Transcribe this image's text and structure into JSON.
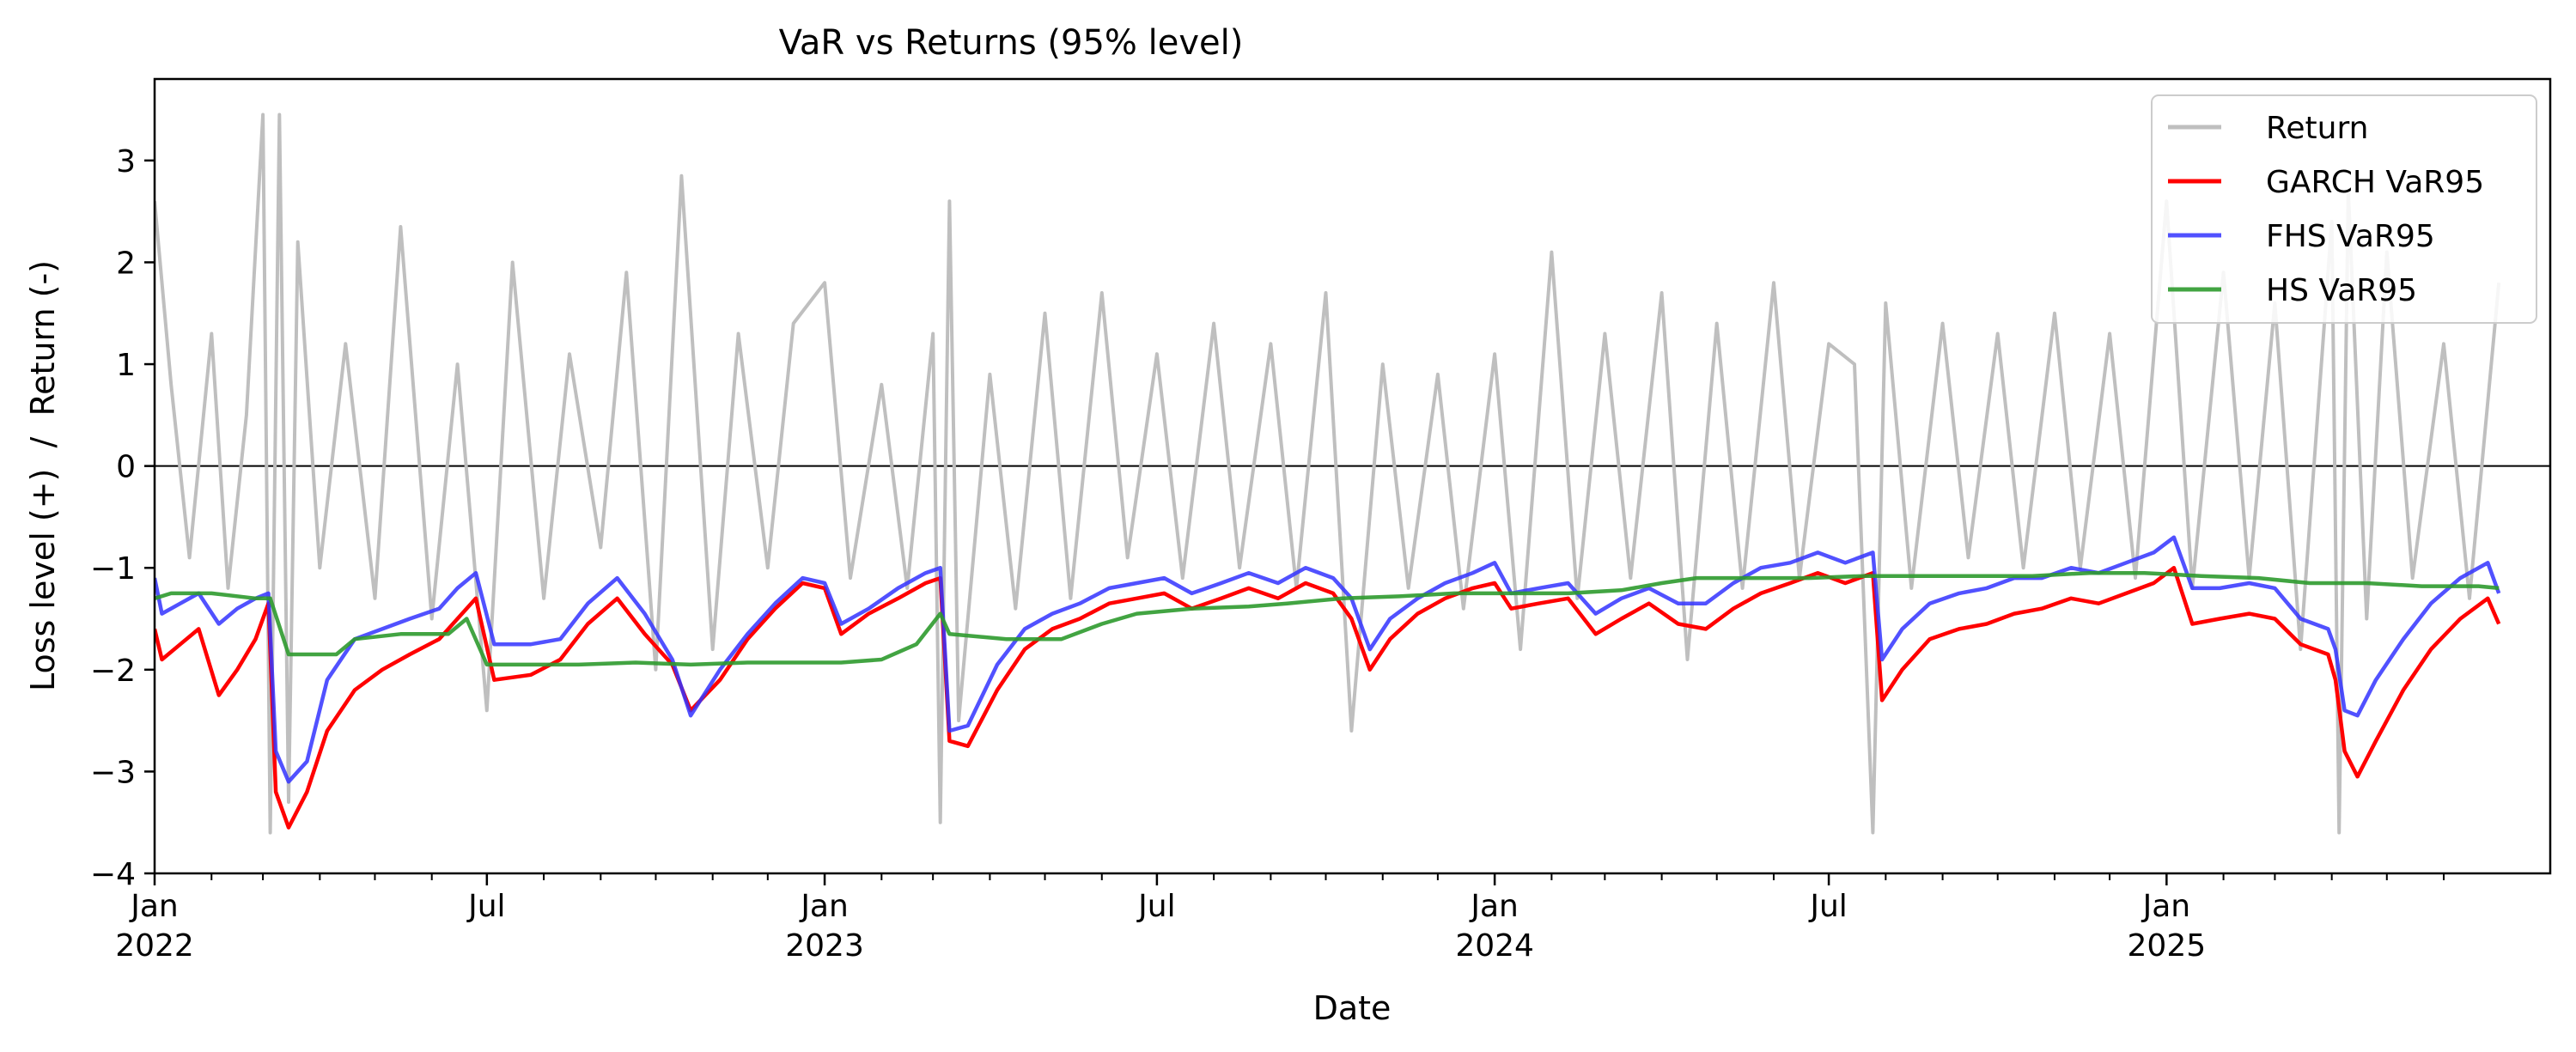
{
  "chart_data": {
    "type": "line",
    "title": "VaR vs Returns (95% level)",
    "xlabel": "Date",
    "ylabel": "Loss level (+)  /  Return (-)",
    "ylim": [
      -4.0,
      3.8
    ],
    "xlim": [
      "2022-01-01",
      "2025-07-01"
    ],
    "yticks": [
      -4,
      -3,
      -2,
      -1,
      0,
      1,
      2,
      3
    ],
    "xticks_major": [
      {
        "date": "2022-01-01",
        "label": "Jan",
        "year": "2022"
      },
      {
        "date": "2022-07-01",
        "label": "Jul",
        "year": ""
      },
      {
        "date": "2023-01-01",
        "label": "Jan",
        "year": "2023"
      },
      {
        "date": "2023-07-01",
        "label": "Jul",
        "year": ""
      },
      {
        "date": "2024-01-01",
        "label": "Jan",
        "year": "2024"
      },
      {
        "date": "2024-07-01",
        "label": "Jul",
        "year": ""
      },
      {
        "date": "2025-01-01",
        "label": "Jan",
        "year": "2025"
      }
    ],
    "zero_line": true,
    "grid": false,
    "legend": "top-right",
    "series": [
      {
        "name": "Return",
        "color": "#bfbfbf",
        "x": [
          "2022-01-01",
          "2022-01-10",
          "2022-01-20",
          "2022-02-01",
          "2022-02-10",
          "2022-02-20",
          "2022-03-01",
          "2022-03-05",
          "2022-03-10",
          "2022-03-15",
          "2022-03-20",
          "2022-04-01",
          "2022-04-15",
          "2022-05-01",
          "2022-05-15",
          "2022-06-01",
          "2022-06-15",
          "2022-07-01",
          "2022-07-15",
          "2022-08-01",
          "2022-08-15",
          "2022-09-01",
          "2022-09-15",
          "2022-10-01",
          "2022-10-15",
          "2022-11-01",
          "2022-11-15",
          "2022-12-01",
          "2022-12-15",
          "2023-01-01",
          "2023-01-15",
          "2023-02-01",
          "2023-02-15",
          "2023-03-01",
          "2023-03-05",
          "2023-03-10",
          "2023-03-15",
          "2023-04-01",
          "2023-04-15",
          "2023-05-01",
          "2023-05-15",
          "2023-06-01",
          "2023-06-15",
          "2023-07-01",
          "2023-07-15",
          "2023-08-01",
          "2023-08-15",
          "2023-09-01",
          "2023-09-15",
          "2023-10-01",
          "2023-10-15",
          "2023-11-01",
          "2023-11-15",
          "2023-12-01",
          "2023-12-15",
          "2024-01-01",
          "2024-01-15",
          "2024-02-01",
          "2024-02-15",
          "2024-03-01",
          "2024-03-15",
          "2024-04-01",
          "2024-04-15",
          "2024-05-01",
          "2024-05-15",
          "2024-06-01",
          "2024-06-15",
          "2024-07-01",
          "2024-07-15",
          "2024-07-25",
          "2024-08-01",
          "2024-08-15",
          "2024-09-01",
          "2024-09-15",
          "2024-10-01",
          "2024-10-15",
          "2024-11-01",
          "2024-11-15",
          "2024-12-01",
          "2024-12-15",
          "2025-01-01",
          "2025-01-15",
          "2025-02-01",
          "2025-02-15",
          "2025-03-01",
          "2025-03-15",
          "2025-04-01",
          "2025-04-05",
          "2025-04-10",
          "2025-04-20",
          "2025-05-01",
          "2025-05-15",
          "2025-06-01",
          "2025-06-15",
          "2025-07-01"
        ],
        "values": [
          2.6,
          0.8,
          -0.9,
          1.3,
          -1.2,
          0.5,
          3.45,
          -3.6,
          3.45,
          -3.3,
          2.2,
          -1.0,
          1.2,
          -1.3,
          2.35,
          -1.5,
          1.0,
          -2.4,
          2.0,
          -1.3,
          1.1,
          -0.8,
          1.9,
          -2.0,
          2.85,
          -1.8,
          1.3,
          -1.0,
          1.4,
          1.8,
          -1.1,
          0.8,
          -1.2,
          1.3,
          -3.5,
          2.6,
          -2.5,
          0.9,
          -1.4,
          1.5,
          -1.3,
          1.7,
          -0.9,
          1.1,
          -1.1,
          1.4,
          -1.0,
          1.2,
          -1.2,
          1.7,
          -2.6,
          1.0,
          -1.2,
          0.9,
          -1.4,
          1.1,
          -1.8,
          2.1,
          -1.3,
          1.3,
          -1.1,
          1.7,
          -1.9,
          1.4,
          -1.2,
          1.8,
          -1.1,
          1.2,
          1.0,
          -3.6,
          1.6,
          -1.2,
          1.4,
          -0.9,
          1.3,
          -1.0,
          1.5,
          -1.0,
          1.3,
          -1.1,
          2.6,
          -1.2,
          1.9,
          -1.1,
          1.6,
          -1.8,
          2.4,
          -3.6,
          2.7,
          -1.5,
          2.1,
          -1.1,
          1.2,
          -1.3,
          1.8
        ]
      },
      {
        "name": "GARCH VaR95",
        "color": "#ff0000",
        "x": [
          "2022-01-01",
          "2022-01-05",
          "2022-01-15",
          "2022-01-25",
          "2022-02-05",
          "2022-02-15",
          "2022-02-25",
          "2022-03-04",
          "2022-03-08",
          "2022-03-15",
          "2022-03-25",
          "2022-04-05",
          "2022-04-20",
          "2022-05-05",
          "2022-05-20",
          "2022-06-05",
          "2022-06-15",
          "2022-06-25",
          "2022-07-05",
          "2022-07-25",
          "2022-08-10",
          "2022-08-25",
          "2022-09-10",
          "2022-09-25",
          "2022-10-10",
          "2022-10-20",
          "2022-11-05",
          "2022-11-20",
          "2022-12-05",
          "2022-12-20",
          "2023-01-01",
          "2023-01-10",
          "2023-01-25",
          "2023-02-10",
          "2023-02-25",
          "2023-03-05",
          "2023-03-10",
          "2023-03-20",
          "2023-04-05",
          "2023-04-20",
          "2023-05-05",
          "2023-05-20",
          "2023-06-05",
          "2023-06-20",
          "2023-07-05",
          "2023-07-20",
          "2023-08-05",
          "2023-08-20",
          "2023-09-05",
          "2023-09-20",
          "2023-10-05",
          "2023-10-15",
          "2023-10-25",
          "2023-11-05",
          "2023-11-20",
          "2023-12-05",
          "2023-12-20",
          "2024-01-01",
          "2024-01-10",
          "2024-01-25",
          "2024-02-10",
          "2024-02-25",
          "2024-03-10",
          "2024-03-25",
          "2024-04-10",
          "2024-04-25",
          "2024-05-10",
          "2024-05-25",
          "2024-06-10",
          "2024-06-25",
          "2024-07-10",
          "2024-07-25",
          "2024-07-30",
          "2024-08-10",
          "2024-08-25",
          "2024-09-10",
          "2024-09-25",
          "2024-10-10",
          "2024-10-25",
          "2024-11-10",
          "2024-11-25",
          "2024-12-10",
          "2024-12-25",
          "2025-01-05",
          "2025-01-15",
          "2025-01-30",
          "2025-02-15",
          "2025-03-01",
          "2025-03-15",
          "2025-03-30",
          "2025-04-03",
          "2025-04-08",
          "2025-04-15",
          "2025-04-25",
          "2025-05-10",
          "2025-05-25",
          "2025-06-10",
          "2025-06-25",
          "2025-07-01"
        ],
        "values": [
          -1.6,
          -1.9,
          -1.75,
          -1.6,
          -2.25,
          -2.0,
          -1.7,
          -1.35,
          -3.2,
          -3.55,
          -3.2,
          -2.6,
          -2.2,
          -2.0,
          -1.85,
          -1.7,
          -1.5,
          -1.3,
          -2.1,
          -2.05,
          -1.9,
          -1.55,
          -1.3,
          -1.65,
          -1.95,
          -2.4,
          -2.1,
          -1.7,
          -1.4,
          -1.15,
          -1.2,
          -1.65,
          -1.45,
          -1.3,
          -1.15,
          -1.1,
          -2.7,
          -2.75,
          -2.2,
          -1.8,
          -1.6,
          -1.5,
          -1.35,
          -1.3,
          -1.25,
          -1.4,
          -1.3,
          -1.2,
          -1.3,
          -1.15,
          -1.25,
          -1.5,
          -2.0,
          -1.7,
          -1.45,
          -1.3,
          -1.2,
          -1.15,
          -1.4,
          -1.35,
          -1.3,
          -1.65,
          -1.5,
          -1.35,
          -1.55,
          -1.6,
          -1.4,
          -1.25,
          -1.15,
          -1.05,
          -1.15,
          -1.05,
          -2.3,
          -2.0,
          -1.7,
          -1.6,
          -1.55,
          -1.45,
          -1.4,
          -1.3,
          -1.35,
          -1.25,
          -1.15,
          -1.0,
          -1.55,
          -1.5,
          -1.45,
          -1.5,
          -1.75,
          -1.85,
          -2.1,
          -2.8,
          -3.05,
          -2.7,
          -2.2,
          -1.8,
          -1.5,
          -1.3,
          -1.55
        ]
      },
      {
        "name": "FHS VaR95",
        "color": "#3333ff",
        "x": [
          "2022-01-01",
          "2022-01-05",
          "2022-01-15",
          "2022-01-25",
          "2022-02-05",
          "2022-02-15",
          "2022-02-25",
          "2022-03-04",
          "2022-03-08",
          "2022-03-15",
          "2022-03-25",
          "2022-04-05",
          "2022-04-20",
          "2022-05-05",
          "2022-05-20",
          "2022-06-05",
          "2022-06-15",
          "2022-06-25",
          "2022-07-05",
          "2022-07-25",
          "2022-08-10",
          "2022-08-25",
          "2022-09-10",
          "2022-09-25",
          "2022-10-10",
          "2022-10-20",
          "2022-11-05",
          "2022-11-20",
          "2022-12-05",
          "2022-12-20",
          "2023-01-01",
          "2023-01-10",
          "2023-01-25",
          "2023-02-10",
          "2023-02-25",
          "2023-03-05",
          "2023-03-10",
          "2023-03-20",
          "2023-04-05",
          "2023-04-20",
          "2023-05-05",
          "2023-05-20",
          "2023-06-05",
          "2023-06-20",
          "2023-07-05",
          "2023-07-20",
          "2023-08-05",
          "2023-08-20",
          "2023-09-05",
          "2023-09-20",
          "2023-10-05",
          "2023-10-15",
          "2023-10-25",
          "2023-11-05",
          "2023-11-20",
          "2023-12-05",
          "2023-12-20",
          "2024-01-01",
          "2024-01-10",
          "2024-01-25",
          "2024-02-10",
          "2024-02-25",
          "2024-03-10",
          "2024-03-25",
          "2024-04-10",
          "2024-04-25",
          "2024-05-10",
          "2024-05-25",
          "2024-06-10",
          "2024-06-25",
          "2024-07-10",
          "2024-07-25",
          "2024-07-30",
          "2024-08-10",
          "2024-08-25",
          "2024-09-10",
          "2024-09-25",
          "2024-10-10",
          "2024-10-25",
          "2024-11-10",
          "2024-11-25",
          "2024-12-10",
          "2024-12-25",
          "2025-01-05",
          "2025-01-15",
          "2025-01-30",
          "2025-02-15",
          "2025-03-01",
          "2025-03-15",
          "2025-03-30",
          "2025-04-03",
          "2025-04-08",
          "2025-04-15",
          "2025-04-25",
          "2025-05-10",
          "2025-05-25",
          "2025-06-10",
          "2025-06-25",
          "2025-07-01"
        ],
        "values": [
          -1.1,
          -1.45,
          -1.35,
          -1.25,
          -1.55,
          -1.4,
          -1.3,
          -1.25,
          -2.8,
          -3.1,
          -2.9,
          -2.1,
          -1.7,
          -1.6,
          -1.5,
          -1.4,
          -1.2,
          -1.05,
          -1.75,
          -1.75,
          -1.7,
          -1.35,
          -1.1,
          -1.45,
          -1.9,
          -2.45,
          -2.0,
          -1.65,
          -1.35,
          -1.1,
          -1.15,
          -1.55,
          -1.4,
          -1.2,
          -1.05,
          -1.0,
          -2.6,
          -2.55,
          -1.95,
          -1.6,
          -1.45,
          -1.35,
          -1.2,
          -1.15,
          -1.1,
          -1.25,
          -1.15,
          -1.05,
          -1.15,
          -1.0,
          -1.1,
          -1.3,
          -1.8,
          -1.5,
          -1.3,
          -1.15,
          -1.05,
          -0.95,
          -1.25,
          -1.2,
          -1.15,
          -1.45,
          -1.3,
          -1.2,
          -1.35,
          -1.35,
          -1.15,
          -1.0,
          -0.95,
          -0.85,
          -0.95,
          -0.85,
          -1.9,
          -1.6,
          -1.35,
          -1.25,
          -1.2,
          -1.1,
          -1.1,
          -1.0,
          -1.05,
          -0.95,
          -0.85,
          -0.7,
          -1.2,
          -1.2,
          -1.15,
          -1.2,
          -1.5,
          -1.6,
          -1.8,
          -2.4,
          -2.45,
          -2.1,
          -1.7,
          -1.35,
          -1.1,
          -0.95,
          -1.25
        ]
      },
      {
        "name": "HS VaR95",
        "color": "#2e9a2e",
        "x": [
          "2022-01-01",
          "2022-01-10",
          "2022-02-01",
          "2022-02-25",
          "2022-03-05",
          "2022-03-15",
          "2022-04-10",
          "2022-04-20",
          "2022-05-15",
          "2022-06-10",
          "2022-06-20",
          "2022-07-01",
          "2022-07-20",
          "2022-08-20",
          "2022-09-20",
          "2022-10-20",
          "2022-11-20",
          "2022-12-20",
          "2023-01-10",
          "2023-02-01",
          "2023-02-20",
          "2023-03-05",
          "2023-03-10",
          "2023-04-10",
          "2023-05-10",
          "2023-06-01",
          "2023-06-20",
          "2023-07-20",
          "2023-08-20",
          "2023-09-10",
          "2023-10-10",
          "2023-11-10",
          "2023-12-10",
          "2024-01-10",
          "2024-02-10",
          "2024-03-10",
          "2024-04-01",
          "2024-04-20",
          "2024-05-20",
          "2024-06-20",
          "2024-07-20",
          "2024-08-20",
          "2024-09-20",
          "2024-10-20",
          "2024-11-20",
          "2024-12-20",
          "2025-01-20",
          "2025-02-20",
          "2025-03-20",
          "2025-04-20",
          "2025-05-20",
          "2025-06-20",
          "2025-07-01"
        ],
        "values": [
          -1.3,
          -1.25,
          -1.25,
          -1.3,
          -1.3,
          -1.85,
          -1.85,
          -1.7,
          -1.65,
          -1.65,
          -1.5,
          -1.95,
          -1.95,
          -1.95,
          -1.93,
          -1.95,
          -1.93,
          -1.93,
          -1.93,
          -1.9,
          -1.75,
          -1.45,
          -1.65,
          -1.7,
          -1.7,
          -1.55,
          -1.45,
          -1.4,
          -1.38,
          -1.35,
          -1.3,
          -1.28,
          -1.25,
          -1.25,
          -1.25,
          -1.22,
          -1.15,
          -1.1,
          -1.1,
          -1.1,
          -1.08,
          -1.08,
          -1.08,
          -1.08,
          -1.05,
          -1.05,
          -1.08,
          -1.1,
          -1.15,
          -1.15,
          -1.18,
          -1.18,
          -1.2
        ]
      }
    ]
  }
}
